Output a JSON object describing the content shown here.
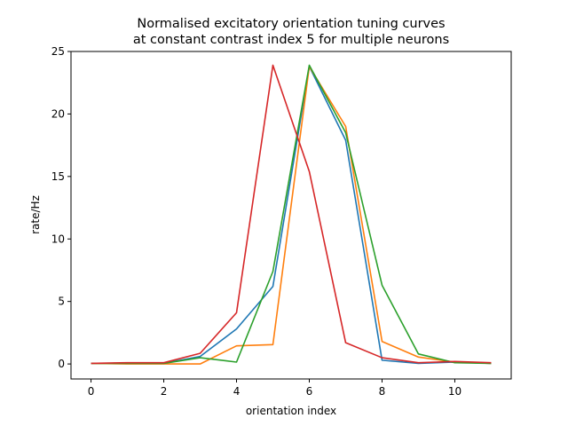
{
  "chart_data": {
    "type": "line",
    "title_lines": [
      "Normalised excitatory orientation tuning curves",
      "at constant contrast index 5 for multiple neurons"
    ],
    "xlabel": "orientation index",
    "ylabel": "rate/Hz",
    "xlim": [
      -0.55,
      11.55
    ],
    "ylim": [
      -1.2,
      25
    ],
    "xticks": [
      0,
      2,
      4,
      6,
      8,
      10
    ],
    "yticks": [
      0,
      5,
      10,
      15,
      20,
      25
    ],
    "grid": false,
    "x": [
      0,
      1,
      2,
      3,
      4,
      5,
      6,
      7,
      8,
      9,
      10,
      11
    ],
    "series": [
      {
        "color": "#1f77b4",
        "values": [
          0.05,
          0.05,
          0.05,
          0.6,
          2.8,
          6.2,
          23.8,
          17.9,
          0.3,
          0.05,
          0.15,
          0.05
        ]
      },
      {
        "color": "#ff7f0e",
        "values": [
          0.05,
          0.0,
          0.0,
          0.0,
          1.45,
          1.55,
          23.8,
          19.0,
          1.8,
          0.55,
          0.15,
          0.05
        ]
      },
      {
        "color": "#2ca02c",
        "values": [
          0.05,
          0.05,
          0.05,
          0.5,
          0.15,
          7.4,
          23.9,
          18.5,
          6.3,
          0.8,
          0.1,
          0.05
        ]
      },
      {
        "color": "#d62728",
        "values": [
          0.05,
          0.1,
          0.1,
          0.85,
          4.1,
          23.9,
          15.4,
          1.7,
          0.5,
          0.1,
          0.2,
          0.1
        ]
      }
    ]
  }
}
